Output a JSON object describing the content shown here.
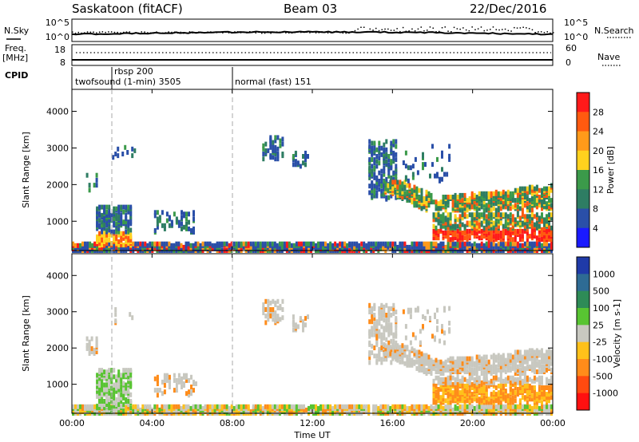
{
  "header": {
    "title": "Saskatoon (fitACF)",
    "beam": "Beam 03",
    "date": "22/Dec/2016"
  },
  "top_panels": {
    "nsky_label": "N.Sky",
    "nsearch_label": "N.Search",
    "freq_label_1": "Freq.",
    "freq_label_2": "[MHz]",
    "nave_label": "Nave",
    "cpid_label": "CPID",
    "noise_ticks_left": [
      "10^5",
      "10^0"
    ],
    "noise_ticks_right": [
      "10^5",
      "10^0"
    ],
    "freq_ticks": [
      "18",
      "8"
    ],
    "nave_ticks": [
      "60",
      "0"
    ]
  },
  "cpid_segments": [
    {
      "label": "twofsound (1-min) 3505",
      "start_hour": 0
    },
    {
      "label": "rbsp 200",
      "start_hour": 2
    },
    {
      "label": "normal (fast) 151",
      "start_hour": 8
    }
  ],
  "colors": {
    "power_scale": [
      "#1a1aff",
      "#2a4fa8",
      "#2e7d63",
      "#3b9a4a",
      "#ffd21e",
      "#ff9a1a",
      "#ff5a10",
      "#ff1a1a"
    ],
    "velocity_scale": [
      "#1f3aa8",
      "#2e6b94",
      "#2e8b57",
      "#58c432",
      "#c8c8c0",
      "#ffc11a",
      "#ff8c1a",
      "#ff4a10",
      "#ff1010"
    ]
  },
  "chart_data": [
    {
      "type": "heatmap",
      "name": "Power",
      "ylabel": "Slant Range [km]",
      "yticks": [
        1000,
        2000,
        3000,
        4000
      ],
      "ylim": [
        200,
        4600
      ],
      "colorbar_label": "Power [dB]",
      "colorbar_ticks": [
        "4",
        "8",
        "12",
        "16",
        "20",
        "24",
        "28"
      ],
      "colorbar_range": [
        0,
        30
      ]
    },
    {
      "type": "heatmap",
      "name": "Velocity",
      "ylabel": "Slant Range [km]",
      "yticks": [
        1000,
        2000,
        3000,
        4000
      ],
      "ylim": [
        200,
        4600
      ],
      "colorbar_label": "Velocity [m s-1]",
      "colorbar_ticks": [
        "1000",
        "500",
        "100",
        "25",
        "-25",
        "-100",
        "-500",
        "-1000"
      ]
    }
  ],
  "xaxis": {
    "label": "Time UT",
    "ticks": [
      "00:00",
      "04:00",
      "08:00",
      "12:00",
      "16:00",
      "20:00",
      "00:00"
    ],
    "xlim_hours": [
      0,
      24
    ]
  }
}
